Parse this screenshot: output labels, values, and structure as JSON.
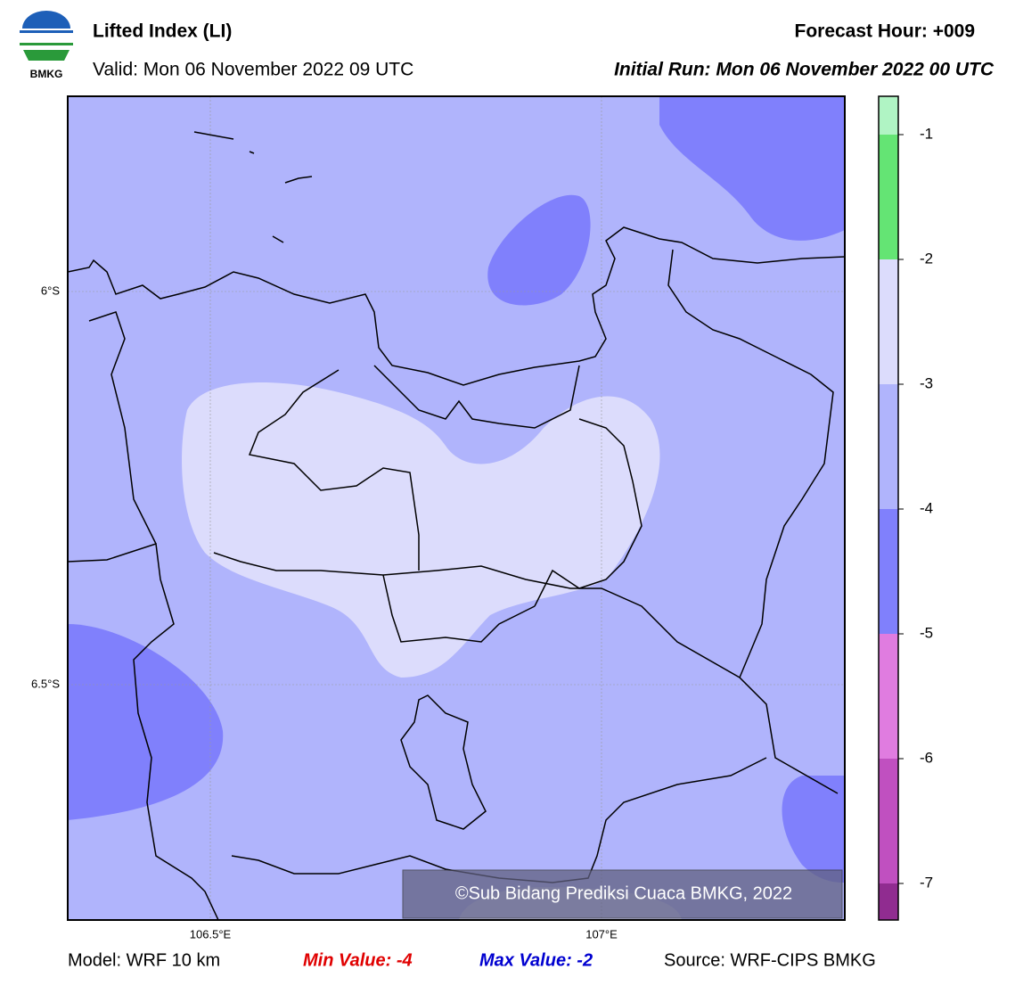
{
  "header": {
    "logo_text": "BMKG",
    "title": "Lifted Index (LI)",
    "valid": "Valid: Mon 06 November 2022 09 UTC",
    "forecast_hour": "Forecast Hour: +009",
    "initial_run": "Initial Run: Mon 06 November 2022 00 UTC"
  },
  "map": {
    "lat_labels": [
      "6°S",
      "6.5°S"
    ],
    "lon_labels": [
      "106.5°E",
      "107°E"
    ],
    "watermark": "©Sub Bidang Prediksi Cuaca BMKG, 2022"
  },
  "colorbar": {
    "ticks": [
      -1,
      -2,
      -3,
      -4,
      -5,
      -6,
      -7
    ],
    "colors": [
      "#b0f4c4",
      "#64e474",
      "#dcdcfc",
      "#b0b4fc",
      "#8080fc",
      "#e07ce0",
      "#c050c0",
      "#902c90"
    ]
  },
  "footer": {
    "model": "Model: WRF 10 km",
    "min_value": "Min Value: -4",
    "max_value": "Max Value: -2",
    "source": "Source: WRF-CIPS BMKG"
  }
}
